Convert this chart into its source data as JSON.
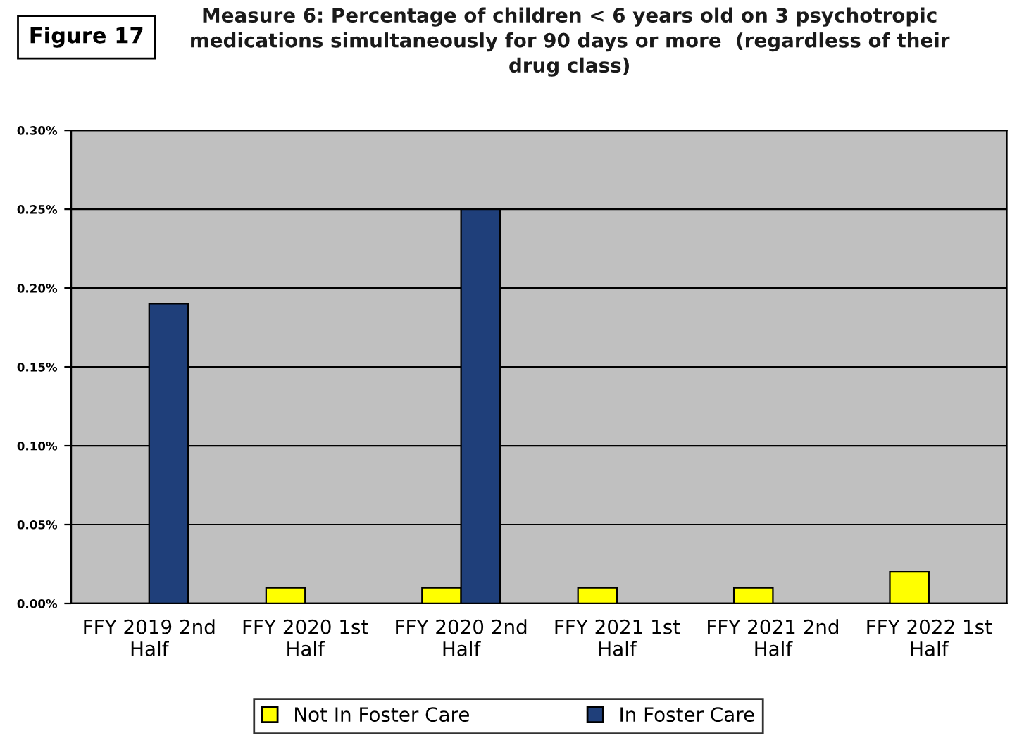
{
  "chart_data": {
    "type": "bar",
    "title": "Measure 6: Percentage of children < 6 years old on 3 psychotropic\nmedications simultaneously for 90 days or more  (regardless of their\ndrug class)",
    "annotations": [
      "Figure 17"
    ],
    "categories": [
      "FFY 2019 2nd\nHalf",
      "FFY 2020 1st\nHalf",
      "FFY 2020 2nd\nHalf",
      "FFY 2021 1st\nHalf",
      "FFY 2021 2nd\nHalf",
      "FFY 2022 1st\nHalf"
    ],
    "series": [
      {
        "name": "Not In Foster Care",
        "color": "#ffff00",
        "values": [
          null,
          0.01,
          0.01,
          0.01,
          0.01,
          0.02
        ]
      },
      {
        "name": "In Foster Care",
        "color": "#1f3f7a",
        "values": [
          0.19,
          null,
          0.25,
          null,
          null,
          null
        ]
      }
    ],
    "ylim": [
      0,
      0.3
    ],
    "yticks": [
      {
        "value": 0,
        "label": "0.00%"
      },
      {
        "value": 0.05,
        "label": "0.05%"
      },
      {
        "value": 0.1,
        "label": "0.10%"
      },
      {
        "value": 0.15,
        "label": "0.15%"
      },
      {
        "value": 0.2,
        "label": "0.20%"
      },
      {
        "value": 0.25,
        "label": "0.25%"
      },
      {
        "value": 0.3,
        "label": "0.30%"
      }
    ],
    "grid": "y",
    "legend": "bottom"
  }
}
